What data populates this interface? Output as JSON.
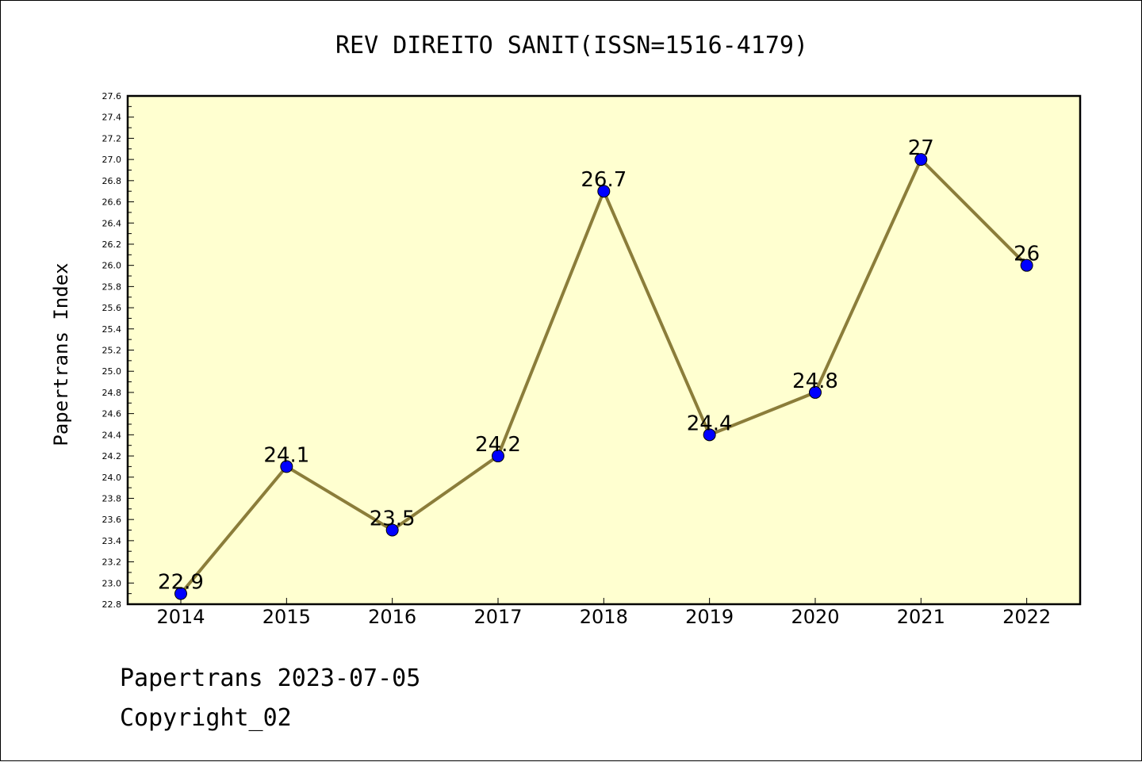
{
  "chart_data": {
    "type": "line",
    "title": "REV DIREITO SANIT(ISSN=1516-4179)",
    "xlabel": "",
    "ylabel": "Papertrans Index",
    "categories": [
      "2014",
      "2015",
      "2016",
      "2017",
      "2018",
      "2019",
      "2020",
      "2021",
      "2022"
    ],
    "values": [
      22.9,
      24.1,
      23.5,
      24.2,
      26.7,
      24.4,
      24.8,
      27.0,
      26.0
    ],
    "data_labels": [
      "22.9",
      "24.1",
      "23.5",
      "24.2",
      "26.7",
      "24.4",
      "24.8",
      "27",
      "26"
    ],
    "ylim": [
      22.8,
      27.6
    ],
    "y_ticks": [
      "22.8",
      "23.0",
      "23.2",
      "23.4",
      "23.6",
      "23.8",
      "24.0",
      "24.2",
      "24.4",
      "24.6",
      "24.8",
      "25.0",
      "25.2",
      "25.4",
      "25.6",
      "25.8",
      "26.0",
      "26.2",
      "26.4",
      "26.6",
      "26.8",
      "27.0",
      "27.2",
      "27.4",
      "27.6"
    ],
    "grid": false,
    "colors": {
      "plot_background": "#ffffd0",
      "line": "#8b7d3a",
      "marker": "#0000ff"
    }
  },
  "footer": {
    "line1": "Papertrans 2023-07-05",
    "line2": "Copyright_02"
  }
}
